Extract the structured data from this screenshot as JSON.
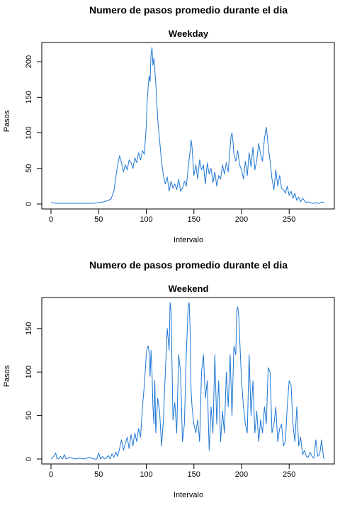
{
  "chart_data": [
    {
      "type": "line",
      "title": "Numero de pasos promedio durante el dia",
      "subtitle": "Weekday",
      "xlabel": "Intervalo",
      "ylabel": "Pasos",
      "xlim": [
        0,
        287
      ],
      "ylim": [
        0,
        220
      ],
      "xticks": [
        0,
        50,
        100,
        150,
        200,
        250
      ],
      "yticks": [
        0,
        50,
        100,
        150,
        200
      ],
      "grid": false,
      "color": "#1f77d4",
      "x": [
        0,
        5,
        10,
        15,
        20,
        25,
        30,
        35,
        40,
        45,
        50,
        55,
        60,
        63,
        66,
        68,
        70,
        72,
        74,
        76,
        78,
        80,
        82,
        84,
        86,
        88,
        90,
        92,
        94,
        96,
        98,
        100,
        101,
        102,
        103,
        104,
        105,
        106,
        107,
        108,
        110,
        112,
        114,
        116,
        118,
        120,
        122,
        124,
        126,
        128,
        130,
        132,
        134,
        136,
        138,
        140,
        142,
        144,
        146,
        147,
        148,
        150,
        152,
        154,
        156,
        158,
        160,
        162,
        164,
        166,
        168,
        170,
        172,
        174,
        176,
        178,
        180,
        182,
        184,
        186,
        188,
        189,
        190,
        191,
        192,
        194,
        196,
        198,
        200,
        202,
        204,
        206,
        208,
        210,
        212,
        214,
        216,
        218,
        220,
        222,
        224,
        226,
        227,
        228,
        230,
        232,
        234,
        236,
        238,
        240,
        242,
        244,
        246,
        248,
        250,
        252,
        254,
        256,
        258,
        260,
        262,
        264,
        266,
        268,
        270,
        272,
        274,
        276,
        278,
        280,
        282,
        284,
        286,
        287
      ],
      "values": [
        2,
        1,
        1,
        1,
        1,
        1,
        1,
        1,
        1,
        1,
        2,
        3,
        5,
        7,
        18,
        38,
        55,
        68,
        58,
        45,
        55,
        48,
        62,
        58,
        50,
        65,
        58,
        72,
        62,
        75,
        70,
        110,
        145,
        165,
        180,
        172,
        210,
        220,
        195,
        205,
        170,
        120,
        90,
        60,
        40,
        28,
        38,
        18,
        32,
        22,
        28,
        20,
        35,
        18,
        22,
        32,
        25,
        50,
        75,
        90,
        80,
        40,
        55,
        35,
        62,
        48,
        55,
        28,
        58,
        42,
        50,
        30,
        45,
        25,
        40,
        35,
        55,
        42,
        58,
        45,
        80,
        95,
        100,
        88,
        70,
        60,
        75,
        55,
        48,
        35,
        60,
        40,
        72,
        52,
        80,
        48,
        62,
        85,
        70,
        60,
        92,
        108,
        95,
        82,
        60,
        35,
        20,
        48,
        25,
        40,
        22,
        20,
        15,
        25,
        12,
        18,
        8,
        15,
        5,
        10,
        3,
        8,
        5,
        2,
        3,
        2,
        1,
        1,
        2,
        1,
        1,
        3,
        2,
        1
      ]
    },
    {
      "type": "line",
      "title": "Numero de pasos promedio durante el dia",
      "subtitle": "Weekend",
      "xlabel": "Intervalo",
      "ylabel": "Pasos",
      "xlim": [
        0,
        287
      ],
      "ylim": [
        0,
        180
      ],
      "xticks": [
        0,
        50,
        100,
        150,
        200,
        250
      ],
      "yticks": [
        0,
        50,
        100,
        150
      ],
      "grid": false,
      "color": "#1f77d4",
      "x": [
        0,
        2,
        4,
        5,
        6,
        8,
        10,
        12,
        14,
        16,
        18,
        20,
        25,
        30,
        35,
        40,
        45,
        48,
        50,
        52,
        54,
        56,
        58,
        60,
        62,
        64,
        66,
        68,
        70,
        72,
        74,
        76,
        78,
        80,
        82,
        84,
        86,
        88,
        90,
        92,
        94,
        96,
        98,
        100,
        101,
        102,
        103,
        104,
        105,
        106,
        107,
        108,
        109,
        110,
        112,
        114,
        116,
        118,
        120,
        122,
        124,
        125,
        126,
        127,
        128,
        130,
        132,
        134,
        136,
        138,
        140,
        142,
        144,
        145,
        146,
        147,
        148,
        150,
        152,
        154,
        156,
        158,
        160,
        162,
        164,
        166,
        168,
        170,
        172,
        174,
        176,
        178,
        180,
        182,
        184,
        186,
        188,
        190,
        192,
        194,
        195,
        196,
        197,
        198,
        200,
        202,
        204,
        206,
        208,
        210,
        212,
        214,
        216,
        218,
        220,
        222,
        224,
        226,
        228,
        230,
        232,
        234,
        236,
        238,
        240,
        242,
        244,
        246,
        248,
        250,
        252,
        254,
        256,
        258,
        260,
        262,
        264,
        266,
        268,
        270,
        272,
        274,
        276,
        278,
        280,
        282,
        284,
        286,
        287
      ],
      "values": [
        0,
        2,
        5,
        7,
        1,
        0,
        3,
        0,
        5,
        0,
        1,
        2,
        0,
        1,
        0,
        2,
        0,
        0,
        7,
        0,
        3,
        0,
        1,
        4,
        0,
        6,
        2,
        8,
        3,
        12,
        22,
        10,
        18,
        25,
        12,
        28,
        15,
        30,
        20,
        35,
        25,
        60,
        85,
        120,
        128,
        130,
        122,
        95,
        125,
        100,
        60,
        40,
        90,
        30,
        70,
        55,
        15,
        45,
        100,
        150,
        125,
        180,
        170,
        110,
        45,
        65,
        30,
        120,
        100,
        20,
        40,
        120,
        175,
        180,
        150,
        80,
        60,
        40,
        30,
        45,
        20,
        100,
        120,
        70,
        90,
        10,
        60,
        30,
        120,
        40,
        90,
        20,
        55,
        30,
        100,
        60,
        120,
        50,
        130,
        120,
        170,
        175,
        165,
        140,
        90,
        60,
        40,
        30,
        120,
        50,
        90,
        30,
        55,
        20,
        45,
        30,
        60,
        40,
        105,
        100,
        30,
        40,
        60,
        20,
        35,
        40,
        15,
        20,
        60,
        90,
        85,
        40,
        20,
        60,
        15,
        25,
        5,
        10,
        3,
        2,
        8,
        3,
        1,
        22,
        3,
        5,
        22,
        2,
        0
      ]
    }
  ]
}
